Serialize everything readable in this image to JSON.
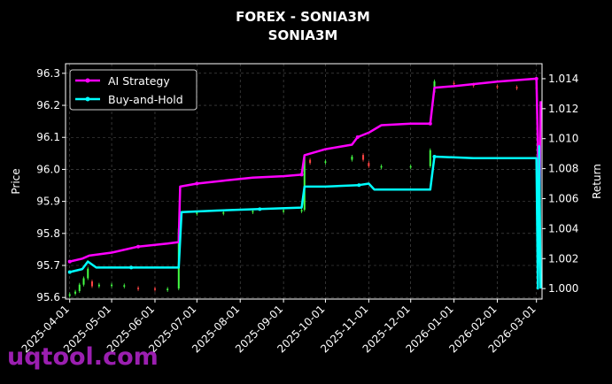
{
  "chart_data": {
    "type": "line",
    "title": "FOREX - SONIA3M",
    "subtitle": "SONIA3M",
    "ylabel_left": "Price",
    "ylabel_right": "Return",
    "ylim_left": [
      95.595,
      96.33
    ],
    "ylim_right": [
      0.9993,
      1.015
    ],
    "xlim": [
      "2025-03-29",
      "2026-03-05"
    ],
    "x_ticks": [
      "2025-04-01",
      "2025-05-01",
      "2025-06-01",
      "2025-07-01",
      "2025-08-01",
      "2025-09-01",
      "2025-10-01",
      "2025-11-01",
      "2025-12-01",
      "2026-01-01",
      "2026-02-01",
      "2026-03-01"
    ],
    "y_ticks_left": [
      "95.6",
      "95.7",
      "95.8",
      "95.9",
      "96.0",
      "96.1",
      "96.2",
      "96.3"
    ],
    "y_ticks_right": [
      "1.000",
      "1.002",
      "1.004",
      "1.006",
      "1.008",
      "1.010",
      "1.012",
      "1.014"
    ],
    "grid": true,
    "legend_position": "top-left",
    "series": [
      {
        "name": "AI Strategy",
        "color": "#ff00ff",
        "points": [
          [
            "2025-04-01",
            1.0018
          ],
          [
            "2025-04-10",
            1.002
          ],
          [
            "2025-04-15",
            1.0022
          ],
          [
            "2025-05-01",
            1.0024
          ],
          [
            "2025-05-20",
            1.0028
          ],
          [
            "2025-06-10",
            1.003
          ],
          [
            "2025-06-18",
            1.0031
          ],
          [
            "2025-06-19",
            1.0068
          ],
          [
            "2025-07-01",
            1.007
          ],
          [
            "2025-07-20",
            1.0072
          ],
          [
            "2025-08-10",
            1.0074
          ],
          [
            "2025-09-01",
            1.0075
          ],
          [
            "2025-09-14",
            1.0076
          ],
          [
            "2025-09-16",
            1.0089
          ],
          [
            "2025-10-01",
            1.0093
          ],
          [
            "2025-10-20",
            1.0096
          ],
          [
            "2025-10-24",
            1.0101
          ],
          [
            "2025-11-01",
            1.0104
          ],
          [
            "2025-11-10",
            1.0109
          ],
          [
            "2025-12-01",
            1.011
          ],
          [
            "2025-12-15",
            1.011
          ],
          [
            "2025-12-18",
            1.0134
          ],
          [
            "2026-01-01",
            1.0135
          ],
          [
            "2026-02-01",
            1.0138
          ],
          [
            "2026-03-01",
            1.014
          ],
          [
            "2026-03-02",
            1.0095
          ],
          [
            "2026-03-03",
            1.0035
          ],
          [
            "2026-03-04",
            1.0125
          ]
        ]
      },
      {
        "name": "Buy-and-Hold",
        "color": "#00ffff",
        "points": [
          [
            "2025-04-01",
            1.0011
          ],
          [
            "2025-04-10",
            1.0013
          ],
          [
            "2025-04-14",
            1.0018
          ],
          [
            "2025-04-20",
            1.0014
          ],
          [
            "2025-05-15",
            1.0014
          ],
          [
            "2025-06-18",
            1.0014
          ],
          [
            "2025-06-20",
            1.0051
          ],
          [
            "2025-07-15",
            1.0052
          ],
          [
            "2025-08-15",
            1.0053
          ],
          [
            "2025-09-14",
            1.0054
          ],
          [
            "2025-09-16",
            1.0068
          ],
          [
            "2025-10-01",
            1.0068
          ],
          [
            "2025-10-25",
            1.0069
          ],
          [
            "2025-11-01",
            1.007
          ],
          [
            "2025-11-05",
            1.0066
          ],
          [
            "2025-12-15",
            1.0066
          ],
          [
            "2025-12-18",
            1.0088
          ],
          [
            "2026-01-15",
            1.0087
          ],
          [
            "2026-02-15",
            1.0087
          ],
          [
            "2026-03-01",
            1.0087
          ],
          [
            "2026-03-02",
            1.0
          ],
          [
            "2026-03-03",
            1.0095
          ],
          [
            "2026-03-04",
            1.0
          ]
        ]
      }
    ],
    "price_candles": [
      [
        "2025-04-01",
        95.605,
        95.61
      ],
      [
        "2025-04-05",
        95.612,
        95.618
      ],
      [
        "2025-04-08",
        95.62,
        95.64
      ],
      [
        "2025-04-11",
        95.64,
        95.66
      ],
      [
        "2025-04-14",
        95.66,
        95.69
      ],
      [
        "2025-04-17",
        95.65,
        95.635
      ],
      [
        "2025-04-22",
        95.635,
        95.64
      ],
      [
        "2025-05-01",
        95.638,
        95.64
      ],
      [
        "2025-05-10",
        95.636,
        95.638
      ],
      [
        "2025-05-20",
        95.63,
        95.628
      ],
      [
        "2025-06-01",
        95.628,
        95.626
      ],
      [
        "2025-06-10",
        95.627,
        95.627
      ],
      [
        "2025-06-18",
        95.628,
        95.815
      ],
      [
        "2025-06-20",
        95.855,
        95.86
      ],
      [
        "2025-07-01",
        95.862,
        95.865
      ],
      [
        "2025-07-20",
        95.866,
        95.866
      ],
      [
        "2025-08-10",
        95.868,
        95.87
      ],
      [
        "2025-09-01",
        95.87,
        95.872
      ],
      [
        "2025-09-14",
        95.872,
        95.873
      ],
      [
        "2025-09-16",
        95.874,
        96.04
      ],
      [
        "2025-09-20",
        96.03,
        96.02
      ],
      [
        "2025-10-01",
        96.022,
        96.025
      ],
      [
        "2025-10-20",
        96.03,
        96.04
      ],
      [
        "2025-10-28",
        96.045,
        96.03
      ],
      [
        "2025-11-01",
        96.02,
        96.01
      ],
      [
        "2025-11-10",
        96.01,
        96.01
      ],
      [
        "2025-12-01",
        96.01,
        96.01
      ],
      [
        "2025-12-15",
        96.01,
        96.06
      ],
      [
        "2025-12-18",
        96.24,
        96.275
      ],
      [
        "2026-01-01",
        96.27,
        96.268
      ],
      [
        "2026-01-15",
        96.265,
        96.262
      ],
      [
        "2026-02-01",
        96.26,
        96.258
      ],
      [
        "2026-02-15",
        96.257,
        96.255
      ],
      [
        "2026-03-01",
        96.256,
        96.255
      ]
    ]
  },
  "watermark": "uqtool.com"
}
